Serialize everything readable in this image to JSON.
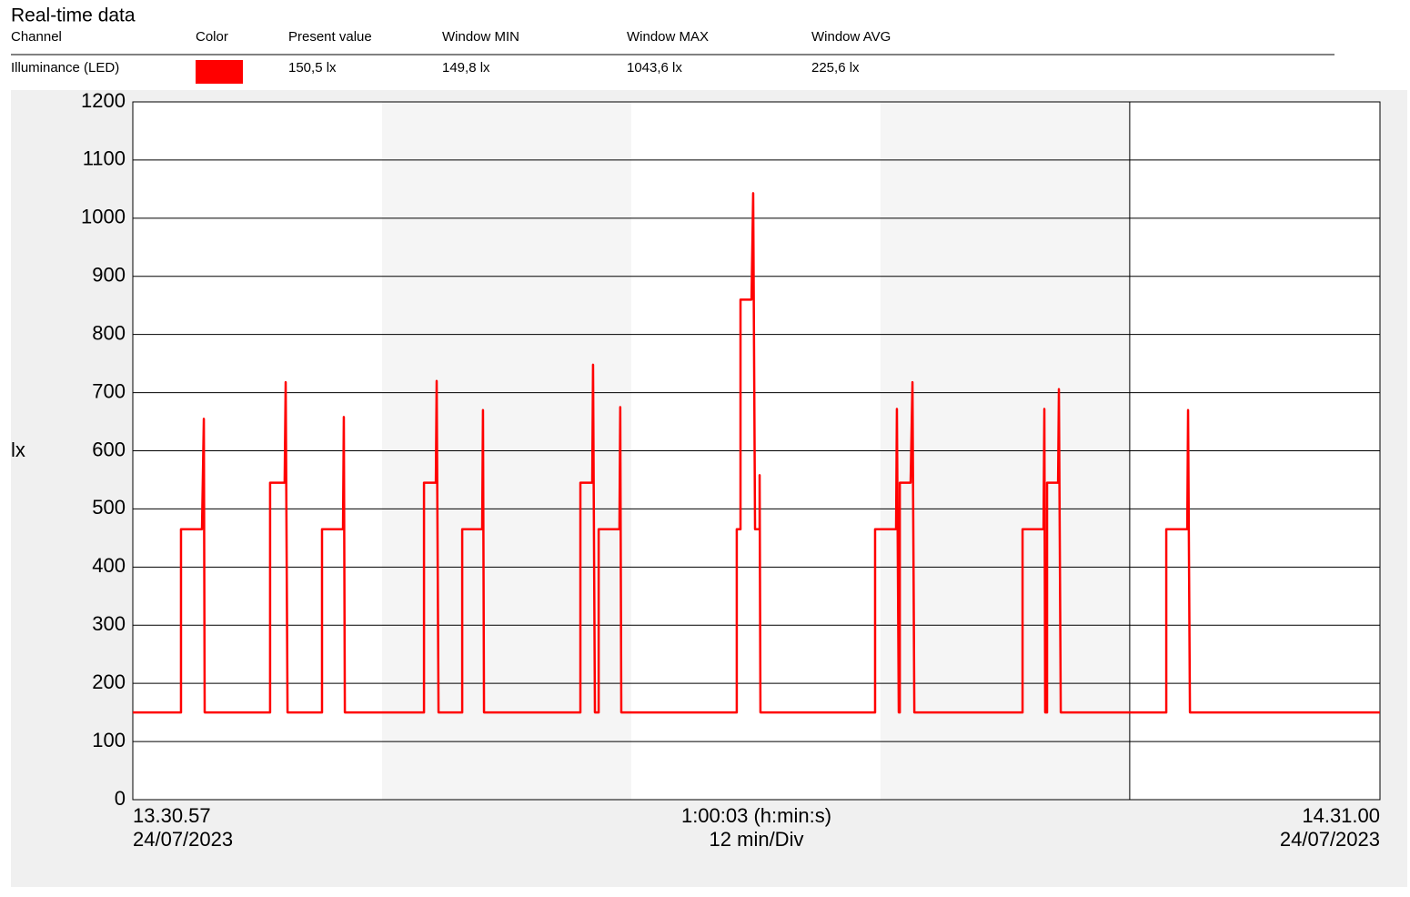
{
  "chart_data": {
    "type": "line",
    "title": "Real-time data",
    "legend_table": {
      "columns": [
        "Channel",
        "Color",
        "Present value",
        "Window MIN",
        "Window MAX",
        "Window AVG"
      ],
      "cells": [
        "150,5 lx",
        "149,8 lx",
        "1043,6 lx",
        "225,6 lx"
      ]
    },
    "y_label": "lx",
    "x_labels": {
      "start_time": "13.30.57",
      "start_date": "24/07/2023",
      "span": "1:00:03 (h:min:s)",
      "division": "12 min/Div",
      "end_time": "14.31.00",
      "end_date": "24/07/2023"
    },
    "xlim": [
      0,
      60.05
    ],
    "xticks": [
      0,
      12,
      24,
      36,
      48,
      60.05
    ],
    "ylim": [
      0,
      1200
    ],
    "yticks": [
      0,
      100,
      200,
      300,
      400,
      500,
      600,
      700,
      800,
      900,
      1000,
      1100,
      1200
    ],
    "grid": true,
    "series": [
      {
        "name": "Illuminance (LED)",
        "color": "#ff0000",
        "x": [
          0,
          2.32,
          2.32,
          3.33,
          3.42,
          3.46,
          6.61,
          6.61,
          7.31,
          7.36,
          7.45,
          9.11,
          9.11,
          10.12,
          10.16,
          10.21,
          14.02,
          14.02,
          14.59,
          14.63,
          14.72,
          15.86,
          15.86,
          16.82,
          16.86,
          16.91,
          21.55,
          21.55,
          22.12,
          22.16,
          22.25,
          22.43,
          22.43,
          23.43,
          23.47,
          23.52,
          29.08,
          29.08,
          29.26,
          29.26,
          29.79,
          29.87,
          29.96,
          30.18,
          30.18,
          30.22,
          35.74,
          35.74,
          36.75,
          36.79,
          36.88,
          36.93,
          36.93,
          37.45,
          37.54,
          37.63,
          42.84,
          42.84,
          43.85,
          43.89,
          43.93,
          44.02,
          44.02,
          44.55,
          44.59,
          44.68,
          49.76,
          49.76,
          50.77,
          50.81,
          50.9,
          60.05
        ],
        "values": [
          150,
          150,
          465,
          465,
          655,
          150,
          150,
          545,
          545,
          718,
          150,
          150,
          465,
          465,
          658,
          150,
          150,
          545,
          545,
          720,
          150,
          150,
          465,
          465,
          670,
          150,
          150,
          545,
          545,
          748,
          150,
          150,
          465,
          465,
          675,
          150,
          150,
          465,
          465,
          860,
          860,
          1043,
          465,
          465,
          558,
          150,
          150,
          465,
          465,
          672,
          150,
          150,
          545,
          545,
          718,
          150,
          150,
          465,
          465,
          672,
          150,
          150,
          545,
          545,
          706,
          150,
          150,
          465,
          465,
          670,
          150,
          150
        ]
      }
    ]
  }
}
